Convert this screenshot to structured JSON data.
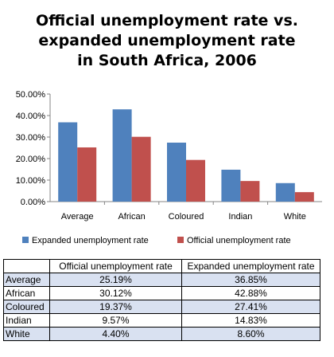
{
  "chart_data": {
    "type": "bar",
    "title_lines": [
      "Official unemployment rate vs.",
      "expanded unemployment rate",
      "in South Africa, 2006"
    ],
    "categories": [
      "Average",
      "African",
      "Coloured",
      "Indian",
      "White"
    ],
    "series": [
      {
        "name": "Expanded unemployment rate",
        "color": "#4f81bd",
        "values": [
          36.85,
          42.88,
          27.41,
          14.83,
          8.6
        ]
      },
      {
        "name": "Official unemployment rate",
        "color": "#c0504d",
        "values": [
          25.19,
          30.12,
          19.37,
          9.57,
          4.4
        ]
      }
    ],
    "y_ticks": [
      "0.00%",
      "10.00%",
      "20.00%",
      "30.00%",
      "40.00%",
      "50.00%"
    ],
    "ylim": [
      0,
      50
    ],
    "gridlines": false,
    "legend_position": "bottom"
  },
  "table": {
    "headers": [
      "",
      "Official unemployment rate",
      "Expanded unemployment rate"
    ],
    "rows": [
      {
        "label": "Average",
        "official": "25.19%",
        "expanded": "36.85%"
      },
      {
        "label": "African",
        "official": "30.12%",
        "expanded": "42.88%"
      },
      {
        "label": "Coloured",
        "official": "19.37%",
        "expanded": "27.41%"
      },
      {
        "label": "Indian",
        "official": "9.57%",
        "expanded": "14.83%"
      },
      {
        "label": "White",
        "official": "4.40%",
        "expanded": "8.60%"
      }
    ]
  }
}
